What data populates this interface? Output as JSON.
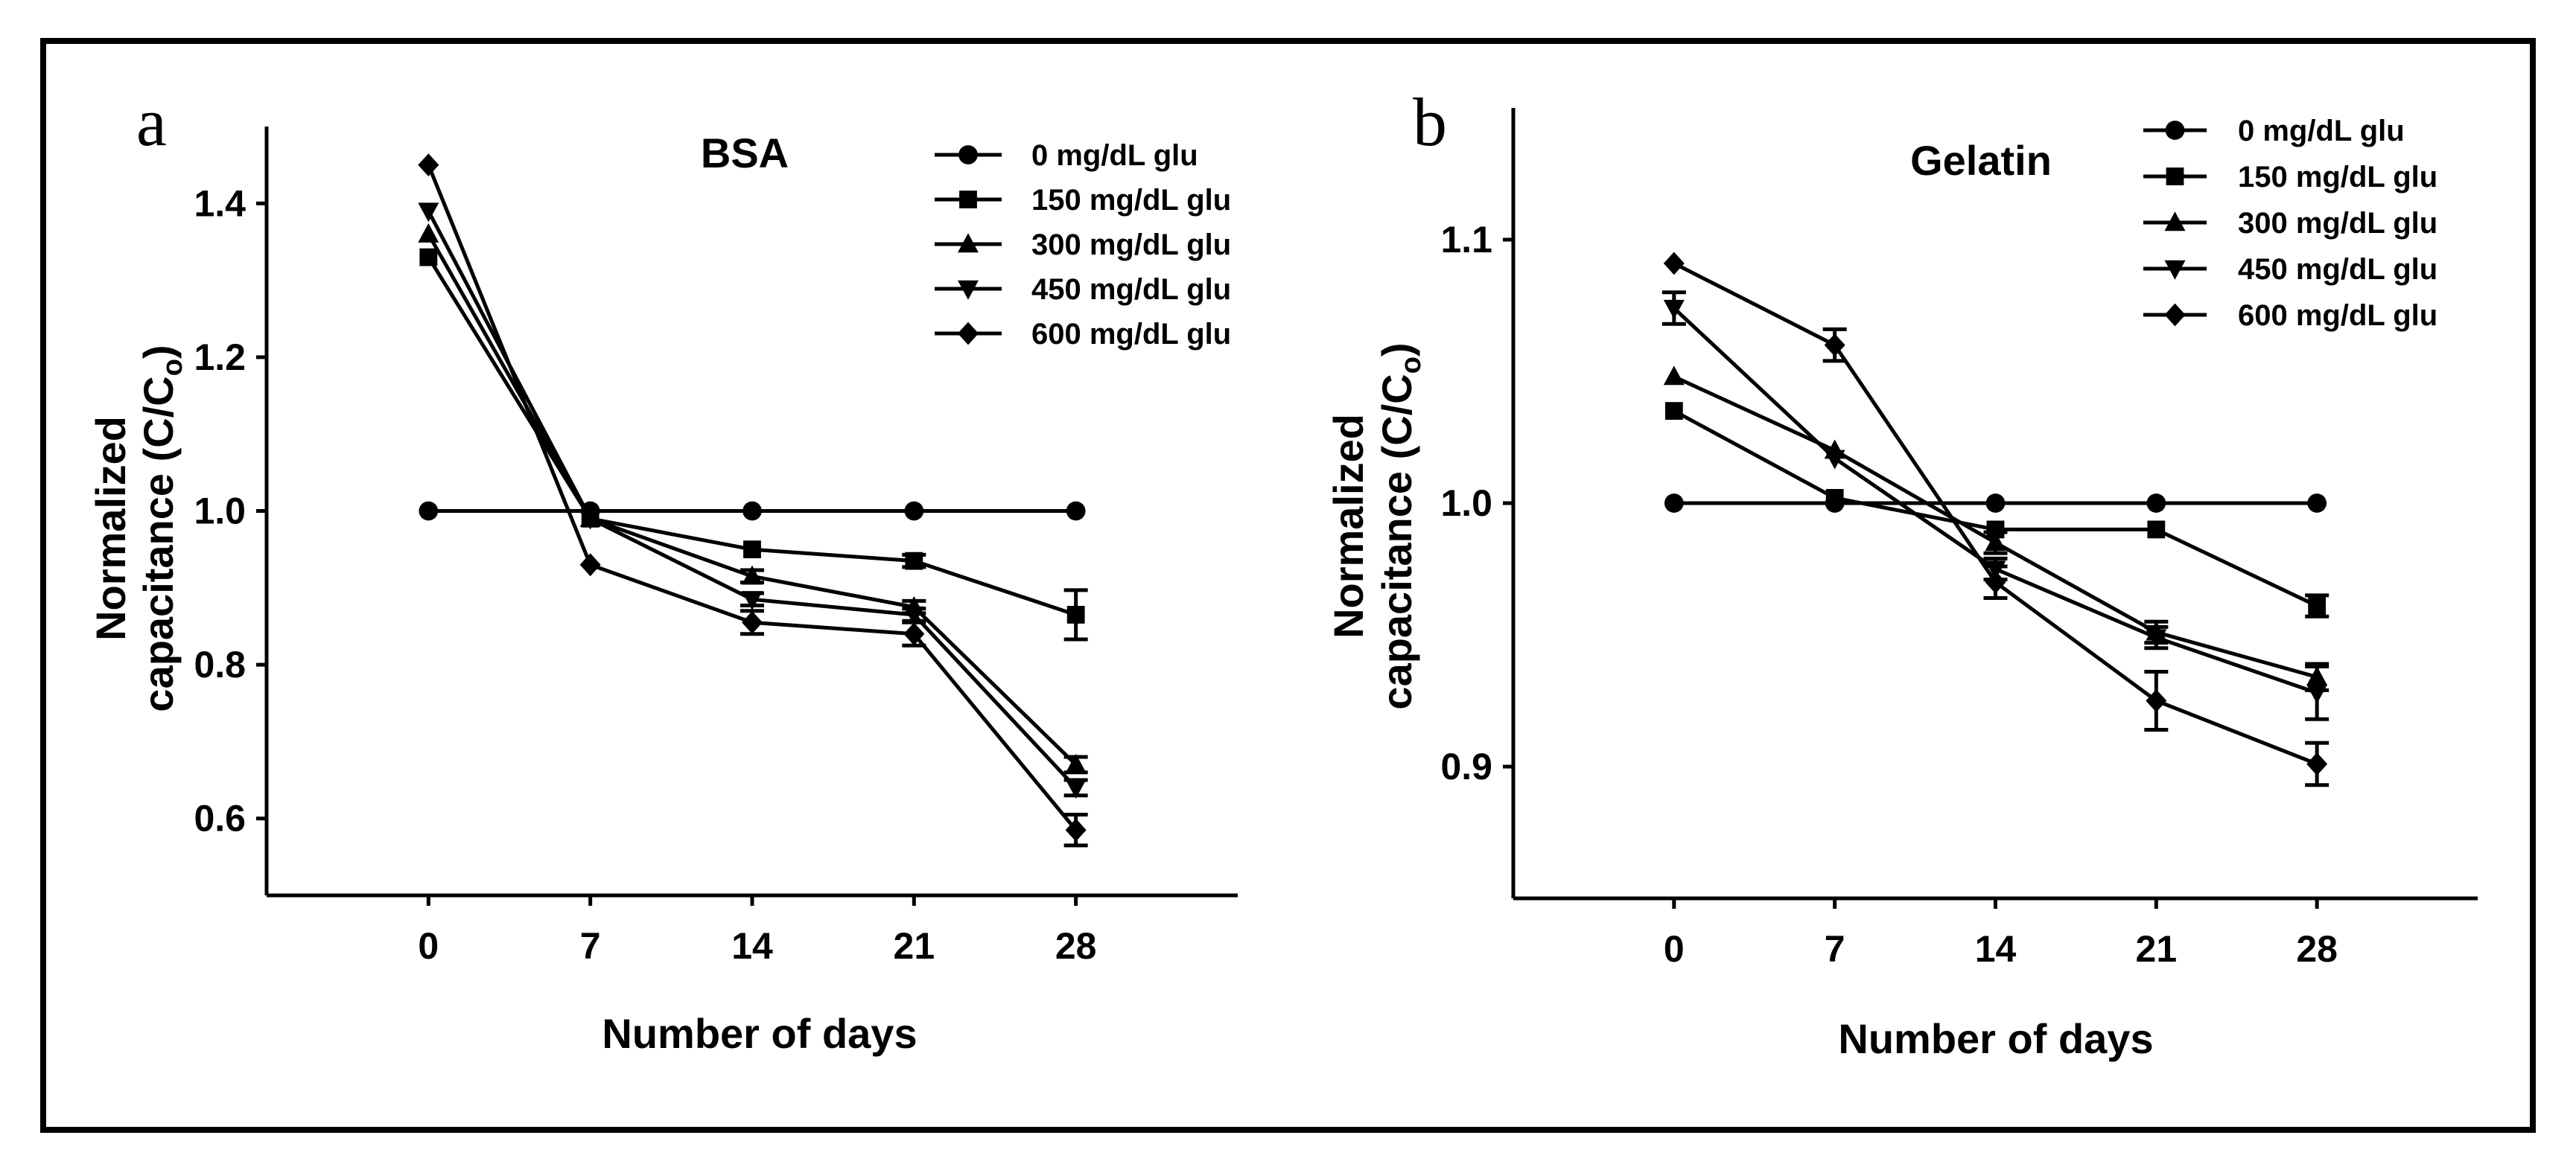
{
  "chart_data": [
    {
      "type": "line",
      "panel_label": "a",
      "title": "BSA",
      "xlabel": "Number of days",
      "ylabel_line1": "Normalized",
      "ylabel_line2_main": "capacitance (C/C",
      "ylabel_line2_sub": "o",
      "ylabel_line2_end": ")",
      "x": [
        0,
        7,
        14,
        21,
        28
      ],
      "x_ticks": [
        "0",
        "7",
        "14",
        "21",
        "28"
      ],
      "xlim": [
        -7,
        35
      ],
      "ylim": [
        0.5,
        1.5
      ],
      "y_ticks": [
        0.6,
        0.8,
        1.0,
        1.2,
        1.4
      ],
      "y_tick_labels": [
        "0.6",
        "0.8",
        "1.0",
        "1.2",
        "1.4"
      ],
      "legend_position": "top-right",
      "series": [
        {
          "name": "0 mg/dL glu",
          "marker": "circle",
          "values": [
            1.0,
            1.0,
            1.0,
            1.0,
            1.0
          ],
          "errors": [
            0,
            0,
            0,
            0,
            0
          ]
        },
        {
          "name": "150 mg/dL glu",
          "marker": "square",
          "values": [
            1.33,
            0.99,
            0.95,
            0.935,
            0.865
          ],
          "errors": [
            0,
            0,
            0,
            0.008,
            0.032
          ]
        },
        {
          "name": "300 mg/dL glu",
          "marker": "triangle-up",
          "values": [
            1.36,
            0.99,
            0.915,
            0.875,
            0.67
          ],
          "errors": [
            0,
            0,
            0.008,
            0.008,
            0.01
          ]
        },
        {
          "name": "450 mg/dL glu",
          "marker": "triangle-down",
          "values": [
            1.39,
            0.99,
            0.885,
            0.865,
            0.64
          ],
          "errors": [
            0,
            0,
            0.008,
            0.008,
            0.01
          ]
        },
        {
          "name": "600 mg/dL glu",
          "marker": "diamond",
          "values": [
            1.45,
            0.93,
            0.855,
            0.84,
            0.585
          ],
          "errors": [
            0,
            0,
            0.015,
            0.015,
            0.02
          ]
        }
      ]
    },
    {
      "type": "line",
      "panel_label": "b",
      "title": "Gelatin",
      "xlabel": "Number of days",
      "ylabel_line1": "Normalized",
      "ylabel_line2_main": "capacitance (C/C",
      "ylabel_line2_sub": "o",
      "ylabel_line2_end": ")",
      "x": [
        0,
        7,
        14,
        21,
        28
      ],
      "x_ticks": [
        "0",
        "7",
        "14",
        "21",
        "28"
      ],
      "xlim": [
        -7,
        35
      ],
      "ylim": [
        0.85,
        1.15
      ],
      "y_ticks": [
        0.9,
        1.0,
        1.1
      ],
      "y_tick_labels": [
        "0.9",
        "1.0",
        "1.1"
      ],
      "legend_position": "top-right",
      "series": [
        {
          "name": "0 mg/dL glu",
          "marker": "circle",
          "values": [
            1.0,
            1.0,
            1.0,
            1.0,
            1.0
          ],
          "errors": [
            0,
            0,
            0,
            0,
            0
          ]
        },
        {
          "name": "150 mg/dL glu",
          "marker": "square",
          "values": [
            1.035,
            1.002,
            0.99,
            0.99,
            0.961
          ],
          "errors": [
            0,
            0,
            0,
            0,
            0.004
          ]
        },
        {
          "name": "300 mg/dL glu",
          "marker": "triangle-up",
          "values": [
            1.048,
            1.02,
            0.985,
            0.951,
            0.934
          ],
          "errors": [
            0,
            0,
            0.004,
            0.004,
            0.005
          ]
        },
        {
          "name": "450 mg/dL glu",
          "marker": "triangle-down",
          "values": [
            1.074,
            1.017,
            0.975,
            0.949,
            0.928
          ],
          "errors": [
            0.006,
            0,
            0.004,
            0.004,
            0.01
          ]
        },
        {
          "name": "600 mg/dL glu",
          "marker": "diamond",
          "values": [
            1.091,
            1.06,
            0.97,
            0.925,
            0.901
          ],
          "errors": [
            0,
            0.006,
            0.006,
            0.011,
            0.008
          ]
        }
      ]
    }
  ]
}
